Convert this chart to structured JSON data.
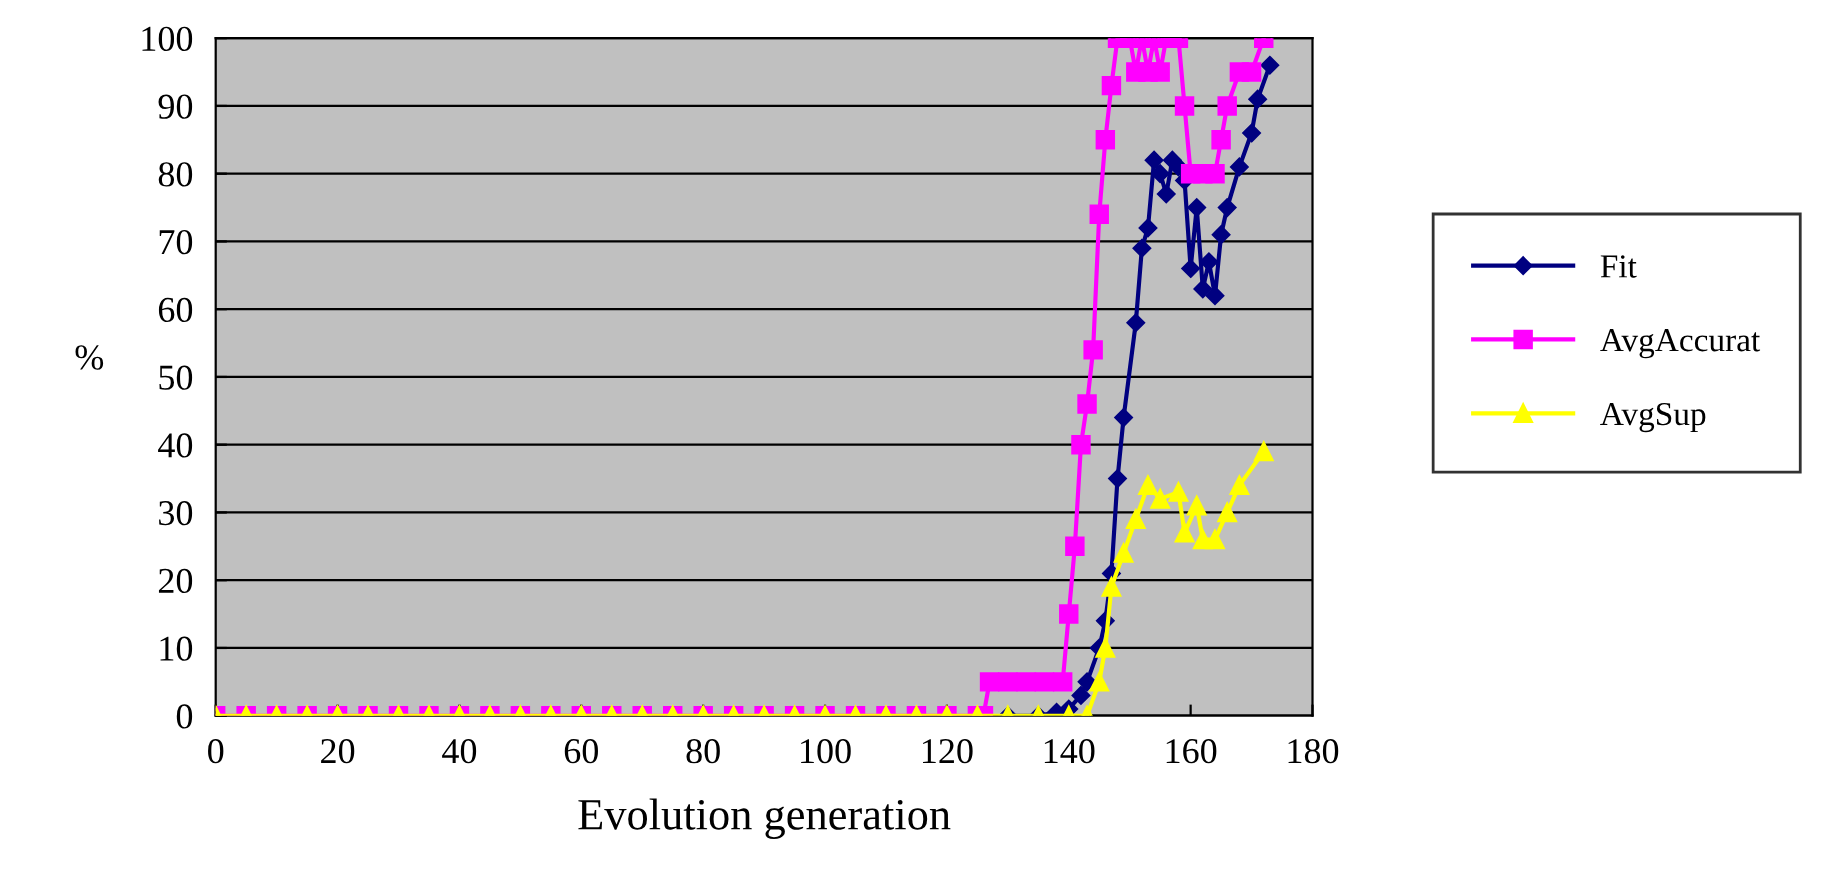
{
  "chart_data": {
    "type": "line",
    "xlabel": "Evolution generation",
    "ylabel": "%",
    "xlim": [
      0,
      180
    ],
    "xticks": [
      0,
      20,
      40,
      60,
      80,
      100,
      120,
      140,
      160,
      180
    ],
    "ylim": [
      0,
      100
    ],
    "yticks": [
      0,
      10,
      20,
      30,
      40,
      50,
      60,
      70,
      80,
      90,
      100
    ],
    "grid": "y",
    "legend": "right",
    "line_style": "solid",
    "series": [
      {
        "name": "Fit",
        "color": "#000080",
        "marker": "diamond",
        "x": [
          130,
          135,
          138,
          140,
          142,
          143,
          145,
          146,
          147,
          148,
          149,
          151,
          152,
          153,
          154,
          155,
          156,
          157,
          158,
          159,
          160,
          161,
          162,
          163,
          164,
          165,
          166,
          168,
          170,
          171,
          173
        ],
        "values": [
          0,
          0,
          0.5,
          1,
          3,
          5,
          10,
          14,
          21,
          35,
          44,
          58,
          69,
          72,
          82,
          80,
          77,
          82,
          81,
          79,
          66,
          75,
          63,
          67,
          62,
          71,
          75,
          81,
          86,
          91,
          96
        ]
      },
      {
        "name": "AvgAccurat",
        "color": "#ff00ff",
        "marker": "square",
        "x": [
          0,
          5,
          10,
          15,
          20,
          25,
          30,
          35,
          40,
          45,
          50,
          55,
          60,
          65,
          70,
          75,
          80,
          85,
          90,
          95,
          100,
          105,
          110,
          115,
          120,
          125,
          126,
          127,
          130,
          133,
          136,
          139,
          140,
          141,
          142,
          143,
          144,
          145,
          146,
          147,
          148,
          150,
          151,
          152,
          153,
          154,
          155,
          156,
          157,
          158,
          159,
          160,
          162,
          164,
          165,
          166,
          168,
          170,
          172
        ],
        "values": [
          0,
          0,
          0,
          0,
          0,
          0,
          0,
          0,
          0,
          0,
          0,
          0,
          0,
          0,
          0,
          0,
          0,
          0,
          0,
          0,
          0,
          0,
          0,
          0,
          0,
          0,
          0,
          5,
          5,
          5,
          5,
          5,
          15,
          25,
          40,
          46,
          54,
          74,
          85,
          93,
          100,
          100,
          95,
          100,
          95,
          100,
          95,
          100,
          100,
          100,
          90,
          80,
          80,
          80,
          85,
          90,
          95,
          95,
          100
        ]
      },
      {
        "name": "AvgSup",
        "color": "#ffff00",
        "marker": "triangle",
        "x": [
          0,
          5,
          10,
          15,
          20,
          25,
          30,
          35,
          40,
          45,
          50,
          55,
          60,
          65,
          70,
          75,
          80,
          85,
          90,
          95,
          100,
          105,
          110,
          115,
          120,
          125,
          130,
          135,
          140,
          143,
          145,
          146,
          147,
          149,
          151,
          153,
          155,
          158,
          159,
          161,
          162,
          164,
          166,
          168,
          172
        ],
        "values": [
          0,
          0,
          0,
          0,
          0,
          0,
          0,
          0,
          0,
          0,
          0,
          0,
          0,
          0,
          0,
          0,
          0,
          0,
          0,
          0,
          0,
          0,
          0,
          0,
          0,
          0,
          0,
          0,
          0,
          0,
          5,
          10,
          19,
          24,
          29,
          34,
          32,
          33,
          27,
          31,
          26,
          26,
          30,
          34,
          39
        ]
      }
    ]
  }
}
